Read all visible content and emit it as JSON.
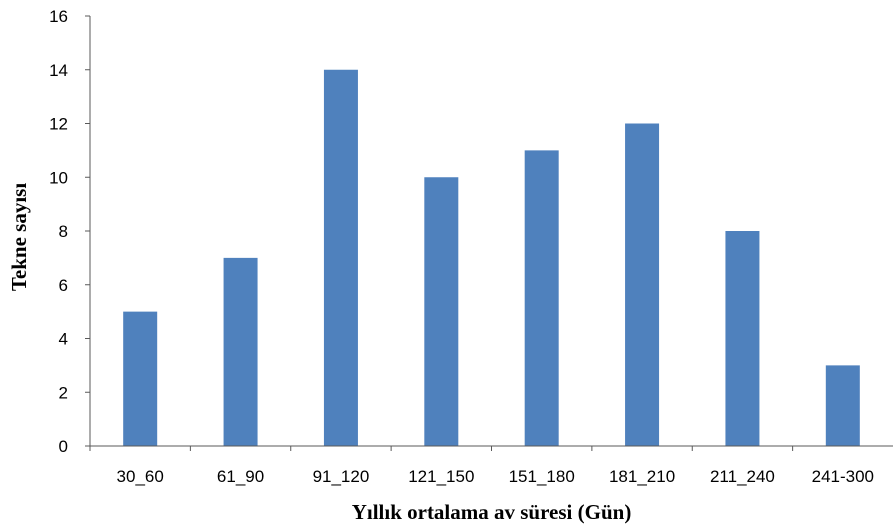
{
  "chart_data": {
    "type": "bar",
    "categories": [
      "30_60",
      "61_90",
      "91_120",
      "121_150",
      "151_180",
      "181_210",
      "211_240",
      "241-300"
    ],
    "values": [
      5,
      7,
      14,
      10,
      11,
      12,
      8,
      3
    ],
    "xlabel": "Yıllık ortalama av süresi (Gün)",
    "ylabel": "Tekne sayısı",
    "ylim": [
      0,
      16
    ],
    "yticks": [
      0,
      2,
      4,
      6,
      8,
      10,
      12,
      14,
      16
    ],
    "grid": false,
    "bar_color": "#4f81bd",
    "axis_color": "#595959"
  }
}
